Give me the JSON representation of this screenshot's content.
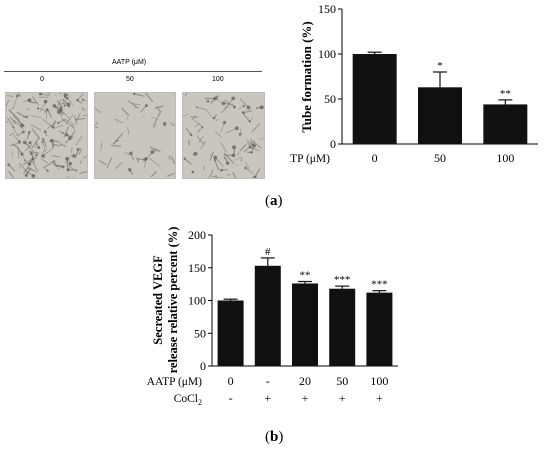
{
  "panel_a": {
    "label_open": "(",
    "label_letter": "a",
    "label_close": ")",
    "header": "AATP (μM)",
    "images": [
      {
        "label": "0"
      },
      {
        "label": "50"
      },
      {
        "label": "100"
      }
    ]
  },
  "panel_b": {
    "label_open": "(",
    "label_letter": "b",
    "label_close": ")"
  },
  "colors": {
    "bar": "#111111",
    "axis": "#000000",
    "image_bg": "#c9c6bf",
    "image_line": "#6e6a62"
  },
  "chart_data": [
    {
      "type": "bar",
      "ylabel": "Tube formation (%)",
      "ylim": [
        0,
        150
      ],
      "yticks": [
        0,
        50,
        100,
        150
      ],
      "categories": [
        "0",
        "50",
        "100"
      ],
      "row_label": "AATP (μM)",
      "values": [
        100,
        63,
        44
      ],
      "errors": [
        2,
        17,
        5
      ],
      "annotations": [
        "",
        "*",
        "**"
      ]
    },
    {
      "type": "bar",
      "ylabel_line1": "Secreated VEGF",
      "ylabel_line2": "release relative percent (%)",
      "ylim": [
        0,
        200
      ],
      "yticks": [
        0,
        50,
        100,
        150,
        200
      ],
      "categories": [
        "0",
        "-",
        "20",
        "50",
        "100"
      ],
      "row_label": "AATP (μM)",
      "row2_label": "CoCl",
      "row2_sub": "2",
      "row2_values": [
        "-",
        "+",
        "+",
        "+",
        "+"
      ],
      "values": [
        100,
        153,
        126,
        118,
        112
      ],
      "errors": [
        2,
        12,
        3,
        4,
        3
      ],
      "annotations": [
        "",
        "#",
        "**",
        "***",
        "***"
      ]
    }
  ]
}
